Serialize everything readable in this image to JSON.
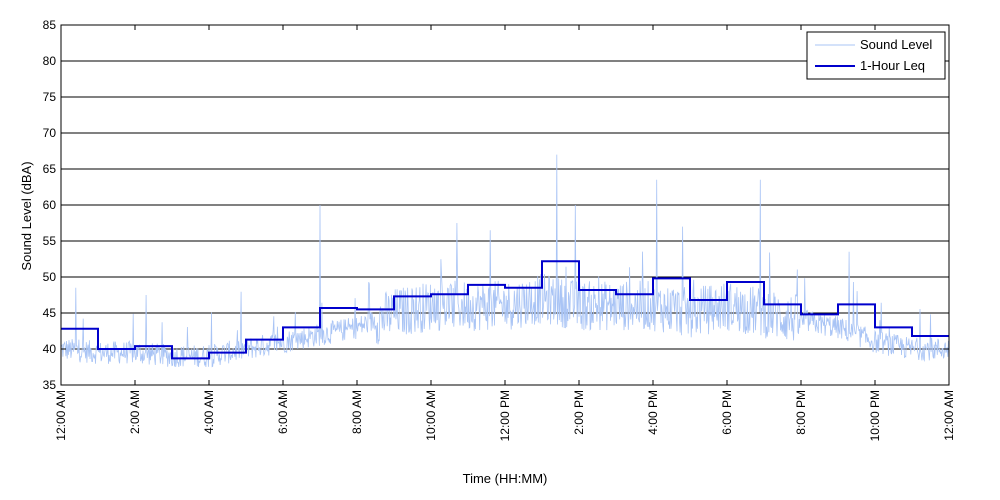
{
  "chart_data": {
    "type": "line",
    "title": "",
    "xlabel": "Time (HH:MM)",
    "ylabel": "Sound Level (dBA)",
    "ylim": [
      35,
      85
    ],
    "yticks": [
      35,
      40,
      45,
      50,
      55,
      60,
      65,
      70,
      75,
      80,
      85
    ],
    "xlim_hours": [
      0,
      24
    ],
    "x_ticks": [
      {
        "hour": 0,
        "label": "12:00 AM"
      },
      {
        "hour": 2,
        "label": "2:00 AM"
      },
      {
        "hour": 4,
        "label": "4:00 AM"
      },
      {
        "hour": 6,
        "label": "6:00 AM"
      },
      {
        "hour": 8,
        "label": "8:00 AM"
      },
      {
        "hour": 10,
        "label": "10:00 AM"
      },
      {
        "hour": 12,
        "label": "12:00 PM"
      },
      {
        "hour": 14,
        "label": "2:00 PM"
      },
      {
        "hour": 16,
        "label": "4:00 PM"
      },
      {
        "hour": 18,
        "label": "6:00 PM"
      },
      {
        "hour": 20,
        "label": "8:00 PM"
      },
      {
        "hour": 22,
        "label": "10:00 PM"
      },
      {
        "hour": 24,
        "label": "12:00 AM"
      }
    ],
    "grid": "horizontal",
    "legend_position": "top-right",
    "series": [
      {
        "name": "Sound Level",
        "color": "#a9c4f5",
        "style": "thin-line",
        "typical_hourly_levels": [
          40,
          39.5,
          39.5,
          39,
          39,
          40,
          41,
          42,
          43,
          45,
          46,
          46,
          46,
          47,
          46,
          46,
          46,
          45,
          46,
          45,
          44,
          43,
          41,
          40
        ],
        "peaks": [
          {
            "hour": 7.0,
            "value": 60
          },
          {
            "hour": 10.7,
            "value": 57.5
          },
          {
            "hour": 11.6,
            "value": 56.5
          },
          {
            "hour": 13.4,
            "value": 67
          },
          {
            "hour": 13.9,
            "value": 60
          },
          {
            "hour": 16.1,
            "value": 63.5
          },
          {
            "hour": 16.8,
            "value": 57
          },
          {
            "hour": 18.9,
            "value": 63.5
          },
          {
            "hour": 21.3,
            "value": 53.5
          },
          {
            "hour": 2.3,
            "value": 47.5
          },
          {
            "hour": 0.4,
            "value": 48.5
          }
        ]
      },
      {
        "name": "1-Hour Leq",
        "color": "#0000cc",
        "style": "step",
        "hourly_values": [
          42.8,
          40.0,
          40.4,
          38.7,
          39.5,
          41.3,
          43.0,
          45.7,
          45.5,
          47.3,
          47.6,
          48.9,
          48.5,
          52.2,
          48.2,
          47.6,
          49.8,
          46.8,
          49.3,
          46.2,
          44.8,
          46.2,
          43.0,
          41.8
        ]
      }
    ]
  }
}
